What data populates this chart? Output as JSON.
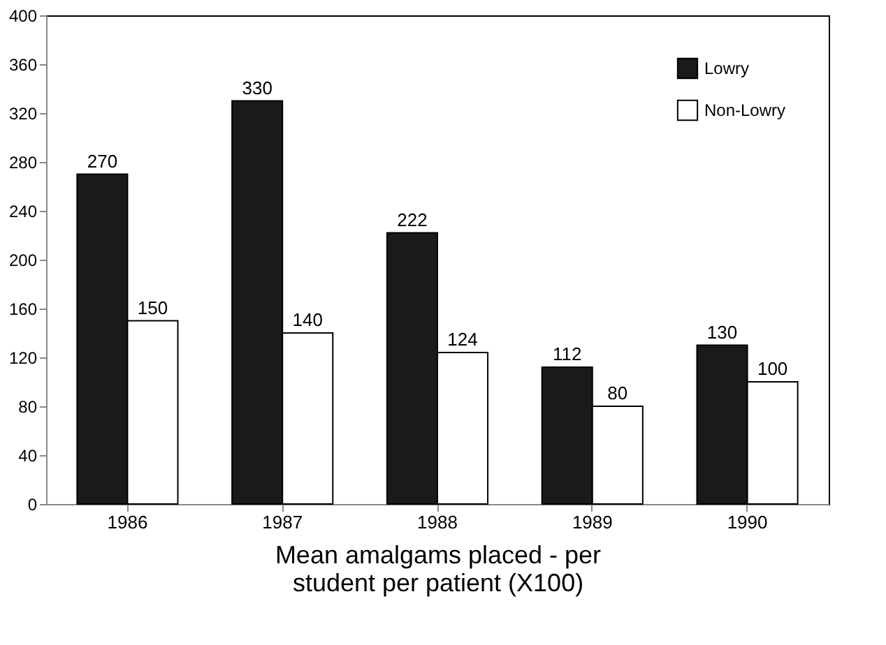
{
  "chart_data": {
    "type": "bar",
    "xlabel": "Mean  amalgams  placed - per\nstudent  per patient  (X100)",
    "categories": [
      "1986",
      "1987",
      "1988",
      "1989",
      "1990"
    ],
    "series": [
      {
        "name": "Lowry",
        "color": "#1a1a1a",
        "values": [
          270,
          330,
          222,
          112,
          130
        ]
      },
      {
        "name": "Non-Lowry",
        "color": "#ffffff",
        "values": [
          150,
          140,
          124,
          80,
          100
        ]
      }
    ],
    "ylim": [
      0,
      400
    ],
    "yticks": [
      0,
      40,
      80,
      120,
      160,
      200,
      240,
      280,
      320,
      360,
      400
    ],
    "grid": false,
    "legend": "top right",
    "data_labels": true
  }
}
